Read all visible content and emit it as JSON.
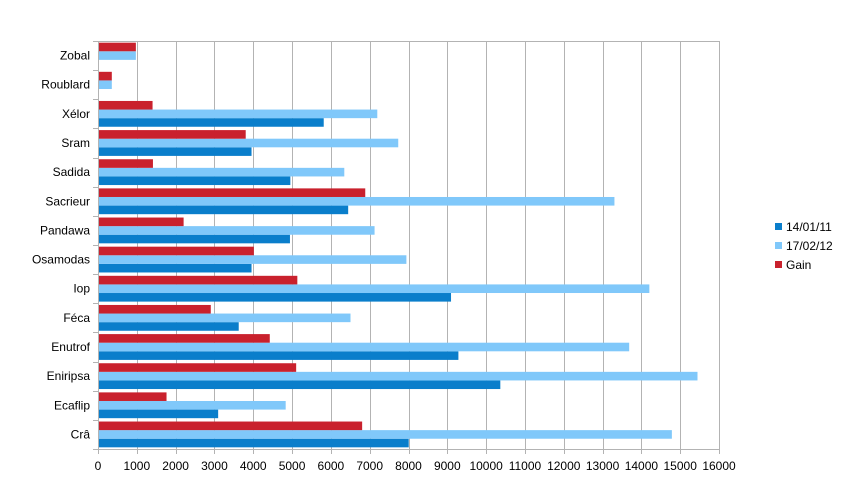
{
  "chart_data": {
    "type": "bar",
    "orientation": "horizontal",
    "title": "",
    "xlabel": "",
    "ylabel": "",
    "categories": [
      "Crâ",
      "Ecaflip",
      "Eniripsa",
      "Enutrof",
      "Féca",
      "Iop",
      "Osamodas",
      "Pandawa",
      "Sacrieur",
      "Sadida",
      "Sram",
      "Xélor",
      "Roublard",
      "Zobal"
    ],
    "series": [
      {
        "name": "14/01/11",
        "color": "#0a7ecb",
        "values": [
          7980,
          3070,
          10340,
          9260,
          3600,
          9070,
          3930,
          4920,
          6420,
          4930,
          3930,
          5790,
          0,
          0
        ]
      },
      {
        "name": "17/02/12",
        "color": "#80c8fa",
        "values": [
          14760,
          4810,
          15420,
          13660,
          6480,
          14180,
          7920,
          7100,
          13280,
          6320,
          7710,
          7170,
          330,
          950
        ]
      },
      {
        "name": "Gain",
        "color": "#c9212d",
        "values": [
          6780,
          1740,
          5080,
          4400,
          2880,
          5110,
          3990,
          2180,
          6860,
          1390,
          3780,
          1380,
          330,
          950
        ]
      }
    ],
    "xlim": [
      0,
      16000
    ],
    "xticks": [
      0,
      1000,
      2000,
      3000,
      4000,
      5000,
      6000,
      7000,
      8000,
      9000,
      10000,
      11000,
      12000,
      13000,
      14000,
      15000,
      16000
    ],
    "grid": true,
    "legend_position": "right"
  }
}
